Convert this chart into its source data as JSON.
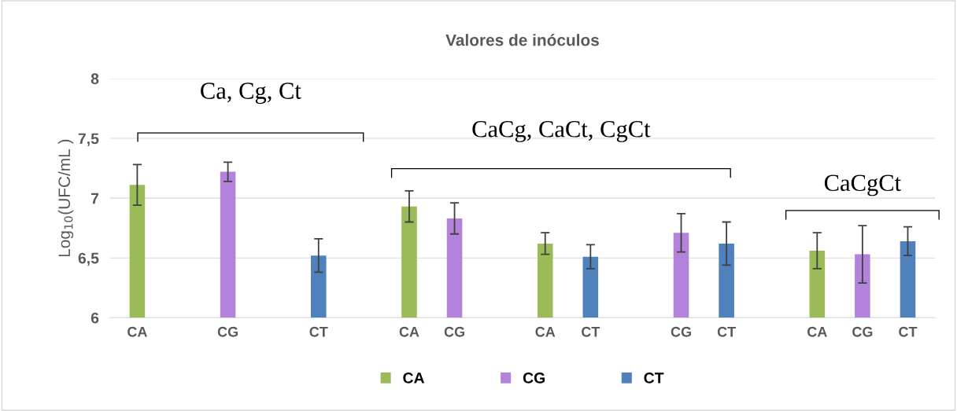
{
  "chart_data": {
    "type": "bar",
    "title": "Valores de inóculos",
    "ylabel": "Log$_{10}$(UFC/mL )",
    "categories": [
      "CA",
      null,
      "CG",
      null,
      "CT",
      null,
      "CA",
      "CG",
      null,
      "CA",
      "CT",
      null,
      "CG",
      "CT",
      null,
      "CA",
      "CG",
      "CT"
    ],
    "series": [
      {
        "name": "CA",
        "color": "#9bbb59",
        "values": [
          7.11,
          null,
          null,
          null,
          null,
          null,
          6.93,
          null,
          null,
          6.62,
          null,
          null,
          null,
          null,
          null,
          6.56,
          null,
          null
        ],
        "errors": [
          0.17,
          null,
          null,
          null,
          null,
          null,
          0.13,
          null,
          null,
          0.09,
          null,
          null,
          null,
          null,
          null,
          0.15,
          null,
          null
        ]
      },
      {
        "name": "CG",
        "color": "#b383db",
        "values": [
          null,
          null,
          7.22,
          null,
          null,
          null,
          null,
          6.83,
          null,
          null,
          null,
          null,
          6.71,
          null,
          null,
          null,
          6.53,
          null
        ],
        "errors": [
          null,
          null,
          0.08,
          null,
          null,
          null,
          null,
          0.13,
          null,
          null,
          null,
          null,
          0.16,
          null,
          null,
          null,
          0.24,
          null
        ]
      },
      {
        "name": "CT",
        "color": "#4f81bd",
        "values": [
          null,
          null,
          null,
          null,
          6.52,
          null,
          null,
          null,
          null,
          null,
          6.51,
          null,
          null,
          6.62,
          null,
          null,
          null,
          6.64
        ],
        "errors": [
          null,
          null,
          null,
          null,
          0.14,
          null,
          null,
          null,
          null,
          null,
          0.1,
          null,
          null,
          0.18,
          null,
          null,
          null,
          0.12
        ]
      }
    ],
    "ylim": [
      6,
      8
    ],
    "yticks": [
      6,
      {
        "value": 6.5,
        "label": "6,5"
      },
      7,
      {
        "value": 7.5,
        "label": "7,5"
      },
      8
    ],
    "grid": "y",
    "legend": "bottom",
    "annotations": [
      "Ca, Cg, Ct",
      "CaCg, CaCt, CgCt",
      "CaCgCt"
    ]
  }
}
